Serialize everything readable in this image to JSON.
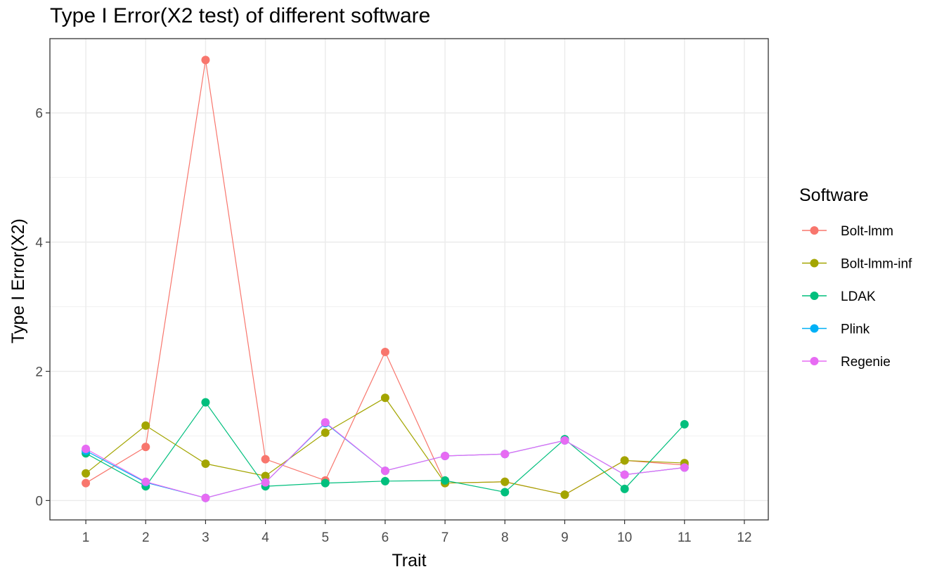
{
  "chart_data": {
    "type": "line",
    "title": "Type I Error(X2 test) of different software",
    "xlabel": "Trait",
    "ylabel": "Type I Error(X2)",
    "x": [
      1,
      2,
      3,
      4,
      5,
      6,
      7,
      8,
      9,
      10,
      11
    ],
    "xticks": [
      "1",
      "2",
      "3",
      "4",
      "5",
      "6",
      "7",
      "8",
      "9",
      "10",
      "11",
      "12"
    ],
    "xlim": [
      0.4,
      12.4
    ],
    "yticks": [
      0,
      2,
      4,
      6
    ],
    "ylim": [
      -0.3,
      7.15
    ],
    "grid": true,
    "legend": {
      "title": "Software",
      "position": "right"
    },
    "series": [
      {
        "name": "Bolt-lmm",
        "color": "#F8766D",
        "values": [
          0.27,
          0.83,
          6.82,
          0.64,
          0.31,
          2.3,
          0.27,
          0.29,
          0.09,
          0.62,
          0.55
        ]
      },
      {
        "name": "Bolt-lmm-inf",
        "color": "#A3A500",
        "values": [
          0.42,
          1.16,
          0.57,
          0.38,
          1.05,
          1.59,
          0.27,
          0.29,
          0.09,
          0.62,
          0.58
        ]
      },
      {
        "name": "LDAK",
        "color": "#00BF7D",
        "values": [
          0.73,
          0.22,
          1.52,
          0.22,
          0.27,
          0.3,
          0.31,
          0.13,
          0.95,
          0.18,
          1.18
        ]
      },
      {
        "name": "Plink",
        "color": "#00B0F6",
        "values": [
          0.77,
          0.28,
          0.04,
          0.28,
          1.2,
          0.46,
          0.69,
          0.72,
          0.93,
          0.4,
          0.51
        ]
      },
      {
        "name": "Regenie",
        "color": "#E76BF3",
        "values": [
          0.8,
          0.29,
          0.04,
          0.28,
          1.21,
          0.46,
          0.69,
          0.72,
          0.93,
          0.4,
          0.51
        ]
      }
    ]
  }
}
